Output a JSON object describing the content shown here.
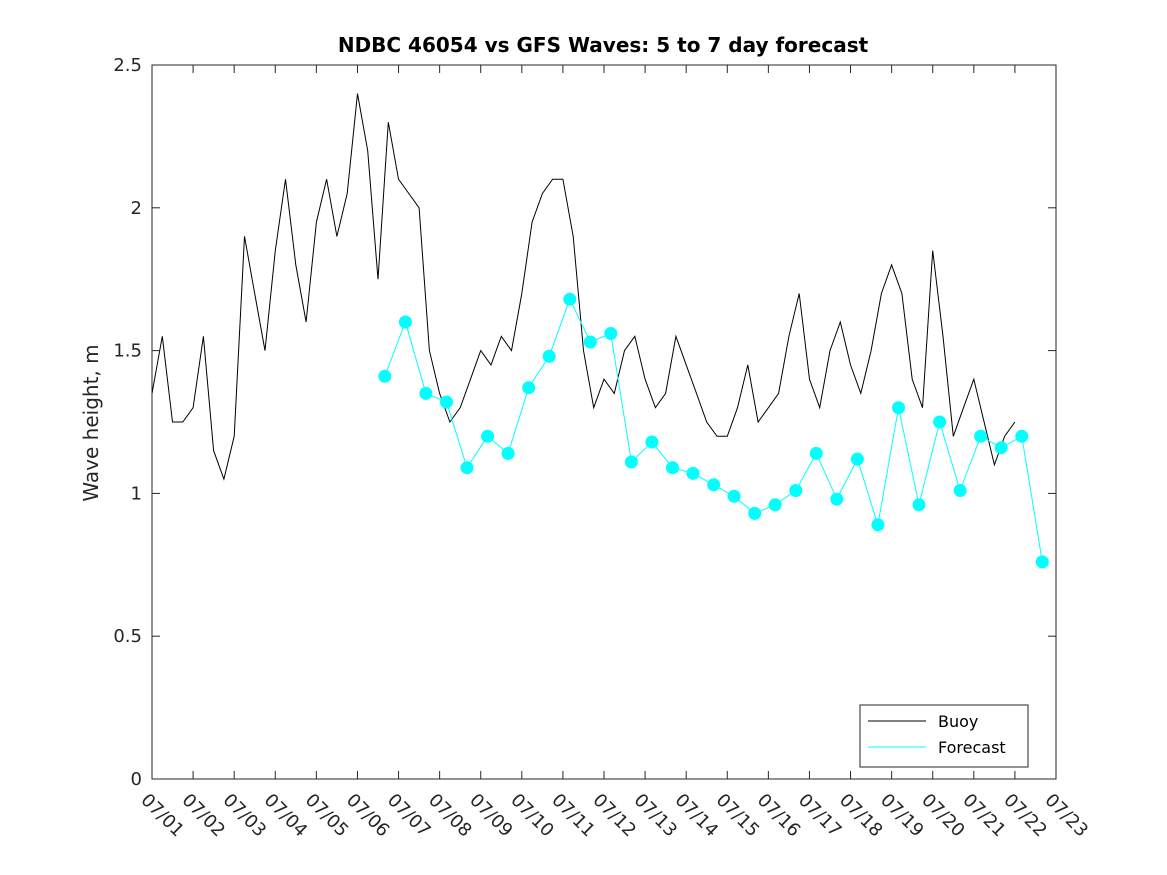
{
  "chart_data": {
    "type": "line",
    "title": "NDBC 46054 vs GFS Waves: 5 to 7 day forecast",
    "xlabel": "",
    "ylabel": "Wave height, m",
    "xlim": [
      "07/01",
      "07/23"
    ],
    "ylim": [
      0,
      2.5
    ],
    "yticks": [
      0,
      0.5,
      1,
      1.5,
      2,
      2.5
    ],
    "ytick_labels": [
      "0",
      "0.5",
      "1",
      "1.5",
      "2",
      "2.5"
    ],
    "xtick_labels": [
      "07/01",
      "07/02",
      "07/03",
      "07/04",
      "07/05",
      "07/06",
      "07/07",
      "07/08",
      "07/09",
      "07/10",
      "07/11",
      "07/12",
      "07/13",
      "07/14",
      "07/15",
      "07/16",
      "07/17",
      "07/18",
      "07/19",
      "07/20",
      "07/21",
      "07/22",
      "07/23"
    ],
    "grid": false,
    "legend": {
      "position": "bottom-right",
      "entries": [
        "Buoy",
        "Forecast"
      ]
    },
    "colors": {
      "buoy": "#000000",
      "forecast": "#00FFFF"
    },
    "series": [
      {
        "name": "Buoy",
        "style": "line",
        "x": [
          "07/01 00:00",
          "07/01 06:00",
          "07/01 12:00",
          "07/01 18:00",
          "07/02 00:00",
          "07/02 06:00",
          "07/02 12:00",
          "07/02 18:00",
          "07/03 00:00",
          "07/03 06:00",
          "07/03 12:00",
          "07/03 18:00",
          "07/04 00:00",
          "07/04 06:00",
          "07/04 12:00",
          "07/04 18:00",
          "07/05 00:00",
          "07/05 06:00",
          "07/05 12:00",
          "07/05 18:00",
          "07/06 00:00",
          "07/06 06:00",
          "07/06 12:00",
          "07/06 18:00",
          "07/07 00:00",
          "07/07 06:00",
          "07/07 12:00",
          "07/07 18:00",
          "07/08 00:00",
          "07/08 06:00",
          "07/08 12:00",
          "07/08 18:00",
          "07/09 00:00",
          "07/09 06:00",
          "07/09 12:00",
          "07/09 18:00",
          "07/10 00:00",
          "07/10 06:00",
          "07/10 12:00",
          "07/10 18:00",
          "07/11 00:00",
          "07/11 06:00",
          "07/11 12:00",
          "07/11 18:00",
          "07/12 00:00",
          "07/12 06:00",
          "07/12 12:00",
          "07/12 18:00",
          "07/13 00:00",
          "07/13 06:00",
          "07/13 12:00",
          "07/13 18:00",
          "07/14 00:00",
          "07/14 06:00",
          "07/14 12:00",
          "07/14 18:00",
          "07/15 00:00",
          "07/15 06:00",
          "07/15 12:00",
          "07/15 18:00",
          "07/16 00:00",
          "07/16 06:00",
          "07/16 12:00",
          "07/16 18:00",
          "07/17 00:00",
          "07/17 06:00",
          "07/17 12:00",
          "07/17 18:00",
          "07/18 00:00",
          "07/18 06:00",
          "07/18 12:00",
          "07/18 18:00",
          "07/19 00:00",
          "07/19 06:00",
          "07/19 12:00",
          "07/19 18:00",
          "07/20 00:00",
          "07/20 06:00",
          "07/20 12:00",
          "07/20 18:00",
          "07/21 00:00",
          "07/21 06:00",
          "07/21 12:00",
          "07/21 18:00",
          "07/22 00:00"
        ],
        "values": [
          1.35,
          1.55,
          1.25,
          1.25,
          1.3,
          1.55,
          1.15,
          1.05,
          1.2,
          1.9,
          1.7,
          1.5,
          1.85,
          2.1,
          1.8,
          1.6,
          1.95,
          2.1,
          1.9,
          2.05,
          2.4,
          2.2,
          1.75,
          2.3,
          2.1,
          2.05,
          2.0,
          1.5,
          1.35,
          1.25,
          1.3,
          1.4,
          1.5,
          1.45,
          1.55,
          1.5,
          1.7,
          1.95,
          2.05,
          2.1,
          2.1,
          1.9,
          1.5,
          1.3,
          1.4,
          1.35,
          1.5,
          1.55,
          1.4,
          1.3,
          1.35,
          1.55,
          1.45,
          1.35,
          1.25,
          1.2,
          1.2,
          1.3,
          1.45,
          1.25,
          1.3,
          1.35,
          1.55,
          1.7,
          1.4,
          1.3,
          1.5,
          1.6,
          1.45,
          1.35,
          1.5,
          1.7,
          1.8,
          1.7,
          1.4,
          1.3,
          1.85,
          1.55,
          1.2,
          1.3,
          1.4,
          1.25,
          1.1,
          1.2,
          1.25
        ]
      },
      {
        "name": "Forecast",
        "style": "markers",
        "x": [
          "07/06 16:00",
          "07/07 04:00",
          "07/07 16:00",
          "07/08 04:00",
          "07/08 16:00",
          "07/09 04:00",
          "07/09 16:00",
          "07/10 04:00",
          "07/10 16:00",
          "07/11 04:00",
          "07/11 16:00",
          "07/12 04:00",
          "07/12 16:00",
          "07/13 04:00",
          "07/13 16:00",
          "07/14 04:00",
          "07/14 16:00",
          "07/15 04:00",
          "07/15 16:00",
          "07/16 04:00",
          "07/16 16:00",
          "07/17 04:00",
          "07/17 16:00",
          "07/18 04:00",
          "07/18 16:00",
          "07/19 04:00",
          "07/19 16:00",
          "07/20 04:00",
          "07/20 16:00",
          "07/21 04:00",
          "07/21 16:00",
          "07/22 04:00",
          "07/22 16:00"
        ],
        "values": [
          1.41,
          1.6,
          1.35,
          1.32,
          1.09,
          1.2,
          1.14,
          1.37,
          1.48,
          1.68,
          1.53,
          1.56,
          1.11,
          1.18,
          1.09,
          1.07,
          1.03,
          0.99,
          0.93,
          0.96,
          1.01,
          1.14,
          0.98,
          1.12,
          0.89,
          1.3,
          0.96,
          1.25,
          1.01,
          1.2,
          1.16,
          1.2,
          0.76
        ]
      }
    ]
  }
}
